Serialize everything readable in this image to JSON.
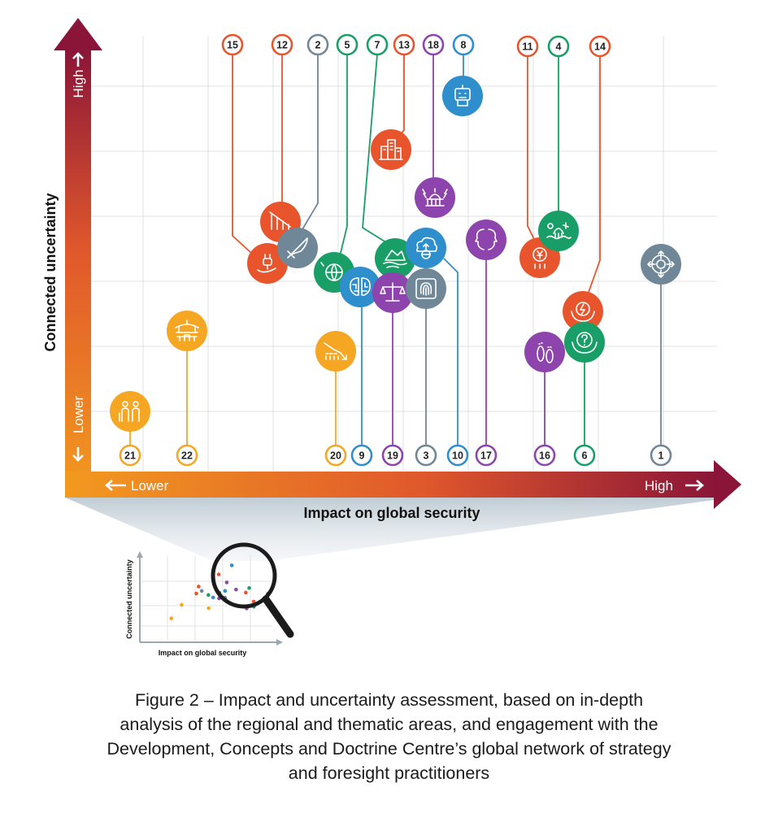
{
  "axes": {
    "x_title": "Impact on global security",
    "y_title": "Connected uncertainty",
    "x_low": "Lower",
    "x_high": "High",
    "y_low": "Lower",
    "y_high": "High"
  },
  "inset": {
    "x_title": "Impact on global security",
    "y_title": "Connected uncertainty"
  },
  "caption": {
    "line1": "Figure 2 – Impact and uncertainty assessment, based on in-depth",
    "line2": "analysis of the regional and thematic areas, and engagement with the",
    "line3": "Development, Concepts and Doctrine Centre’s global network of strategy",
    "line4": "and foresight practitioners"
  },
  "colors": {
    "orange": "#f5a623",
    "red_orange": "#e8552d",
    "salmon": "#ef7f5a",
    "slate": "#6f8797",
    "green": "#1a9e68",
    "blue": "#2f8fcd",
    "purple": "#8e44ad",
    "axis_dark": "#8a1538"
  },
  "items": [
    {
      "id": "15",
      "color": "red_orange",
      "icon": "hand-plug-icon"
    },
    {
      "id": "12",
      "color": "red_orange",
      "icon": "declining-bars-icon"
    },
    {
      "id": "2",
      "color": "slate",
      "icon": "rocket-icon"
    },
    {
      "id": "5",
      "color": "green",
      "icon": "globe-network-icon"
    },
    {
      "id": "7",
      "color": "green",
      "icon": "melting-iceberg-icon"
    },
    {
      "id": "13",
      "color": "red_orange",
      "icon": "city-buildings-icon"
    },
    {
      "id": "18",
      "color": "purple",
      "icon": "capitol-lightning-icon"
    },
    {
      "id": "8",
      "color": "blue",
      "icon": "robot-icon"
    },
    {
      "id": "11",
      "color": "red_orange",
      "icon": "yen-coin-icon"
    },
    {
      "id": "4",
      "color": "green",
      "icon": "climate-hazards-icon"
    },
    {
      "id": "14",
      "color": "red_orange",
      "icon": "energy-hands-icon"
    },
    {
      "id": "21",
      "color": "orange",
      "icon": "elderly-people-icon"
    },
    {
      "id": "22",
      "color": "orange",
      "icon": "pagoda-icon"
    },
    {
      "id": "20",
      "color": "orange",
      "icon": "population-decline-icon"
    },
    {
      "id": "9",
      "color": "blue",
      "icon": "ai-brain-icon"
    },
    {
      "id": "19",
      "color": "purple",
      "icon": "justice-scales-icon"
    },
    {
      "id": "3",
      "color": "slate",
      "icon": "fingerprint-icon"
    },
    {
      "id": "10",
      "color": "blue",
      "icon": "cloud-globe-icon"
    },
    {
      "id": "17",
      "color": "purple",
      "icon": "divided-faces-icon"
    },
    {
      "id": "16",
      "color": "purple",
      "icon": "footprints-icon"
    },
    {
      "id": "6",
      "color": "green",
      "icon": "uncertainty-hands-icon"
    },
    {
      "id": "1",
      "color": "slate",
      "icon": "target-crosshair-icon"
    }
  ]
}
